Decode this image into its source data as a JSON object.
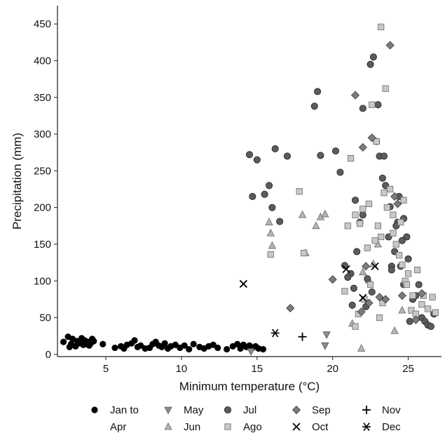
{
  "chart_data": {
    "type": "scatter",
    "title": "",
    "xlabel": "Minimum temperature (°C)",
    "ylabel": "Precipitation (mm)",
    "xlim": [
      1.8,
      27.2
    ],
    "ylim": [
      -3,
      475
    ],
    "xticks": [
      5,
      10,
      15,
      20,
      25
    ],
    "yticks": [
      0,
      50,
      100,
      150,
      200,
      250,
      300,
      350,
      400,
      450
    ],
    "grid": false,
    "legend_position": "bottom",
    "series": [
      {
        "name": "Jan to Apr",
        "marker": "circle-black",
        "color": "#000000",
        "x": [
          2.2,
          2.5,
          2.7,
          2.8,
          3.0,
          3.1,
          3.2,
          3.4,
          3.5,
          3.6,
          3.7,
          3.8,
          3.9,
          4.0,
          4.1,
          4.2,
          2.6,
          3.3,
          4.8,
          5.6,
          6.0,
          6.2,
          6.4,
          6.7,
          6.9,
          7.1,
          7.3,
          7.6,
          7.9,
          8.1,
          8.3,
          8.5,
          8.7,
          8.9,
          9.1,
          9.3,
          9.6,
          9.9,
          10.2,
          10.5,
          10.8,
          11.2,
          11.5,
          11.8,
          12.1,
          12.4,
          13.0,
          13.4,
          13.7,
          13.9,
          14.1,
          14.3,
          14.5,
          14.7,
          14.9,
          15.1,
          15.4
        ],
        "y": [
          17,
          24,
          14,
          21,
          11,
          18,
          15,
          22,
          13,
          19,
          14,
          17,
          12,
          15,
          21,
          18,
          10,
          16,
          14,
          9,
          11,
          8,
          13,
          15,
          19,
          10,
          12,
          8,
          9,
          14,
          17,
          12,
          10,
          15,
          8,
          11,
          13,
          9,
          12,
          7,
          14,
          10,
          8,
          11,
          13,
          9,
          7,
          11,
          14,
          8,
          13,
          10,
          12,
          9,
          11,
          8,
          7
        ]
      },
      {
        "name": "May",
        "marker": "triangle-down",
        "color": "#8c8c8c",
        "x": [
          14.6,
          19.5,
          19.6
        ],
        "y": [
          4,
          12,
          27
        ]
      },
      {
        "name": "Jun",
        "marker": "triangle-up",
        "color": "#b4b4b4",
        "x": [
          15.8,
          15.9,
          16.0,
          18.0,
          18.2,
          18.9,
          19.2,
          19.5,
          21.3,
          21.9,
          22.0,
          22.4,
          22.7,
          23.0,
          24.1,
          24.6
        ],
        "y": [
          180,
          165,
          148,
          190,
          138,
          175,
          187,
          191,
          42,
          8,
          112,
          101,
          123,
          150,
          32,
          60
        ]
      },
      {
        "name": "Jul",
        "marker": "circle-gray",
        "color": "#5c5c5c",
        "x": [
          14.5,
          14.7,
          15.0,
          15.5,
          15.8,
          16.0,
          16.2,
          16.5,
          17.0,
          18.8,
          19.0,
          19.2,
          20.2,
          20.5,
          20.8,
          21.2,
          21.4,
          21.5,
          21.8,
          22.0,
          22.3,
          22.5,
          22.7,
          22.9,
          23.1,
          23.3,
          23.5,
          23.7,
          23.9,
          24.1,
          24.3,
          24.5,
          24.7,
          24.9,
          25.1,
          25.3,
          25.5,
          25.7,
          25.9,
          26.1,
          26.3,
          26.5,
          26.7,
          22.2,
          22.6,
          23.0,
          23.4,
          23.8,
          24.2,
          24.6,
          25.0,
          21.0,
          21.3,
          21.6,
          22.0,
          23.9,
          24.4,
          24.7
        ],
        "y": [
          272,
          215,
          265,
          218,
          230,
          200,
          280,
          181,
          270,
          338,
          358,
          271,
          277,
          248,
          121,
          110,
          90,
          210,
          180,
          335,
          103,
          395,
          405,
          290,
          270,
          240,
          230,
          160,
          120,
          140,
          180,
          120,
          95,
          160,
          45,
          75,
          80,
          95,
          50,
          45,
          40,
          38,
          55,
          65,
          85,
          340,
          270,
          201,
          175,
          155,
          130,
          105,
          67,
          140,
          190,
          115,
          215,
          185
        ]
      },
      {
        "name": "Ago",
        "marker": "square",
        "color": "#c8c8c8",
        "x": [
          15.9,
          17.8,
          18.1,
          20.8,
          21.0,
          21.2,
          21.5,
          21.8,
          22.0,
          22.3,
          22.5,
          22.8,
          23.0,
          23.2,
          23.4,
          23.6,
          23.8,
          24.0,
          24.2,
          24.4,
          24.6,
          24.8,
          25.0,
          25.3,
          25.6,
          25.9,
          26.3,
          26.6,
          23.2,
          23.5,
          22.6,
          22.9,
          24.0,
          24.5,
          21.5,
          21.7,
          22.1,
          23.1,
          23.3,
          24.9,
          25.2,
          25.5,
          26.8,
          26.0,
          22.4,
          24.7
        ],
        "y": [
          136,
          222,
          138,
          86,
          175,
          267,
          190,
          178,
          198,
          145,
          95,
          155,
          175,
          160,
          220,
          200,
          225,
          165,
          150,
          135,
          122,
          100,
          110,
          80,
          115,
          68,
          62,
          78,
          446,
          362,
          340,
          290,
          190,
          180,
          38,
          55,
          75,
          50,
          70,
          95,
          60,
          55,
          57,
          80,
          205,
          210
        ]
      },
      {
        "name": "Sep",
        "marker": "diamond",
        "color": "#7c7c7c",
        "x": [
          17.2,
          20.0,
          21.5,
          21.9,
          22.0,
          22.2,
          22.4,
          22.6,
          23.1,
          23.5,
          23.8,
          24.1,
          24.3,
          24.6,
          25.5,
          25.9
        ],
        "y": [
          63,
          102,
          353,
          58,
          282,
          120,
          70,
          295,
          78,
          75,
          421,
          215,
          205,
          80,
          47,
          83
        ]
      },
      {
        "name": "Oct",
        "marker": "x",
        "color": "#000000",
        "x": [
          14.1,
          20.9,
          22.0,
          22.8
        ],
        "y": [
          96,
          116,
          77,
          120
        ]
      },
      {
        "name": "Nov",
        "marker": "plus",
        "color": "#000000",
        "x": [
          18.0
        ],
        "y": [
          24
        ]
      },
      {
        "name": "Dec",
        "marker": "asterisk",
        "color": "#000000",
        "x": [
          16.2
        ],
        "y": [
          29
        ]
      }
    ],
    "legend": [
      {
        "label": "Jan to",
        "label2": "Apr",
        "series": 0
      },
      {
        "label": "May",
        "series": 1
      },
      {
        "label": "Jun",
        "series": 2
      },
      {
        "label": "Jul",
        "series": 3
      },
      {
        "label": "Ago",
        "series": 4
      },
      {
        "label": "Sep",
        "series": 5
      },
      {
        "label": "Oct",
        "series": 6
      },
      {
        "label": "Nov",
        "series": 7
      },
      {
        "label": "Dec",
        "series": 8
      }
    ]
  }
}
